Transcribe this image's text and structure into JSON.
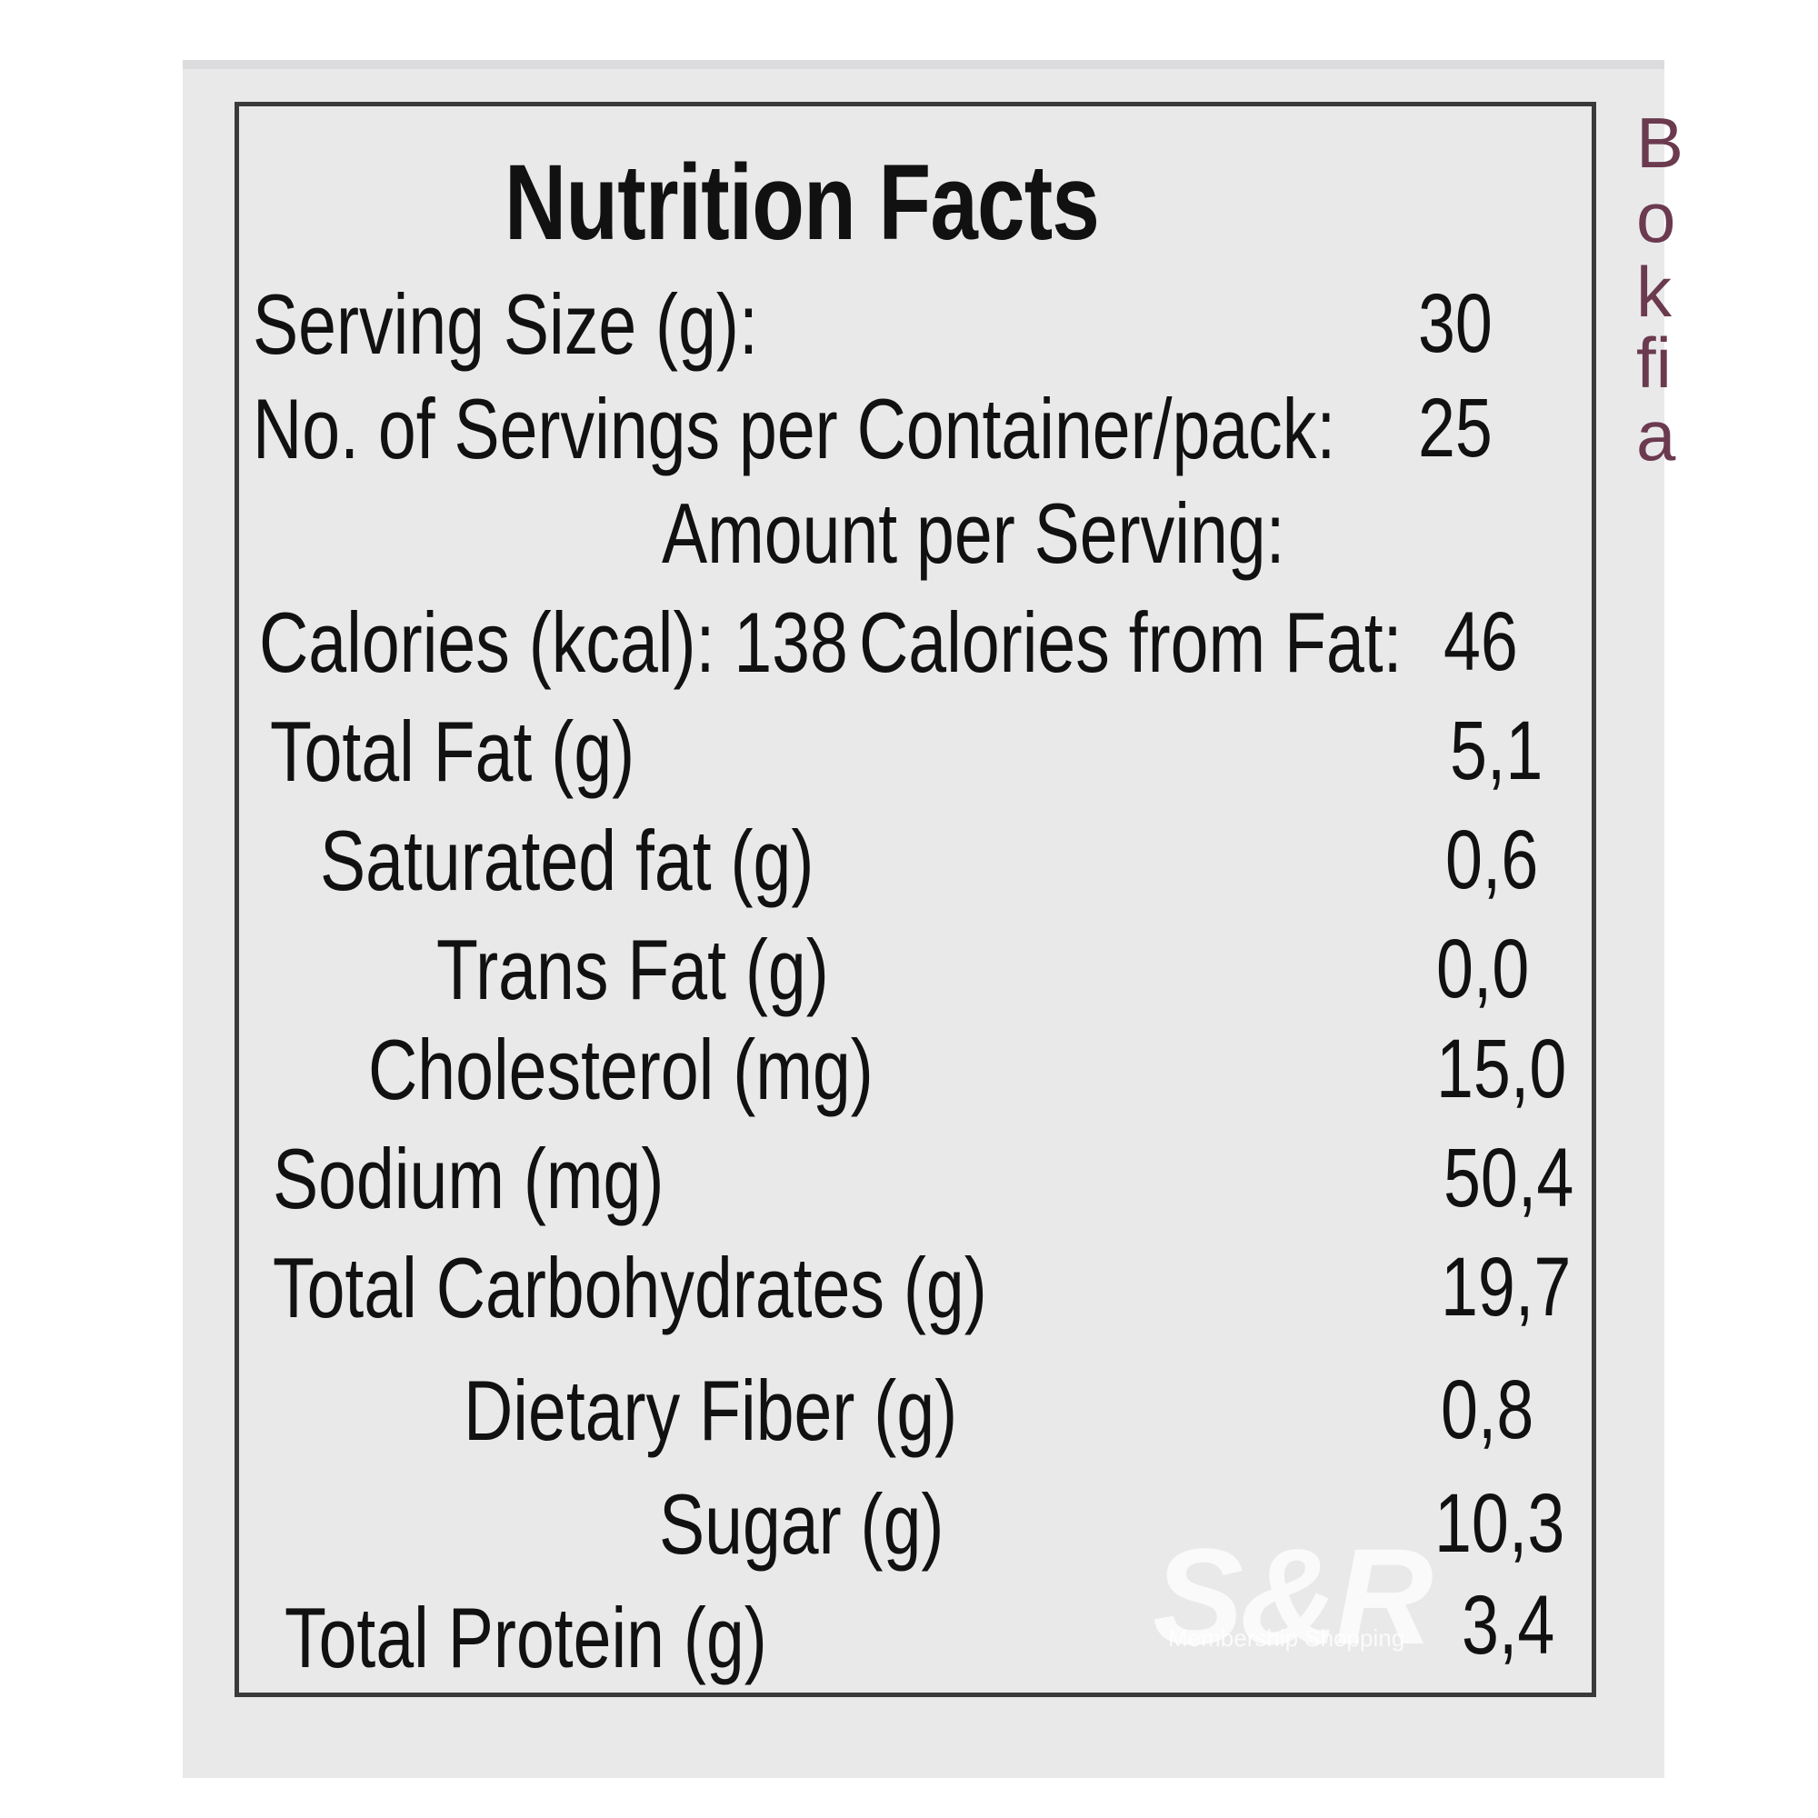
{
  "label": {
    "title": "Nutrition Facts",
    "serving_size_label": "Serving Size (g):",
    "serving_size_value": "30",
    "servings_label": "No. of Servings per Container/pack:",
    "servings_value": "25",
    "amount_per_serving": "Amount per Serving:",
    "calories_label": "Calories (kcal): 138",
    "calories_fat_label": "Calories from Fat:",
    "calories_fat_value": "46",
    "nutrients": [
      {
        "label": "Total Fat (g)",
        "value": "5,1"
      },
      {
        "label": "Saturated fat (g)",
        "value": "0,6"
      },
      {
        "label": "Trans Fat (g)",
        "value": "0,0"
      },
      {
        "label": "Cholesterol (mg)",
        "value": "15,0"
      },
      {
        "label": "Sodium (mg)",
        "value": "50,4"
      },
      {
        "label": "Total Carbohydrates (g)",
        "value": "19,7"
      },
      {
        "label": "Dietary Fiber (g)",
        "value": "0,8"
      },
      {
        "label": "Sugar (g)",
        "value": "10,3"
      },
      {
        "label": "Total Protein (g)",
        "value": "3,4"
      }
    ]
  },
  "side_letters": [
    "B",
    "o",
    "k",
    "fi",
    "a"
  ],
  "watermark": {
    "brand": "S&R",
    "tagline": "Membership Shopping"
  },
  "colors": {
    "background": "#e9e9ea",
    "text": "#111111",
    "side_text": "#6b3a4e"
  }
}
